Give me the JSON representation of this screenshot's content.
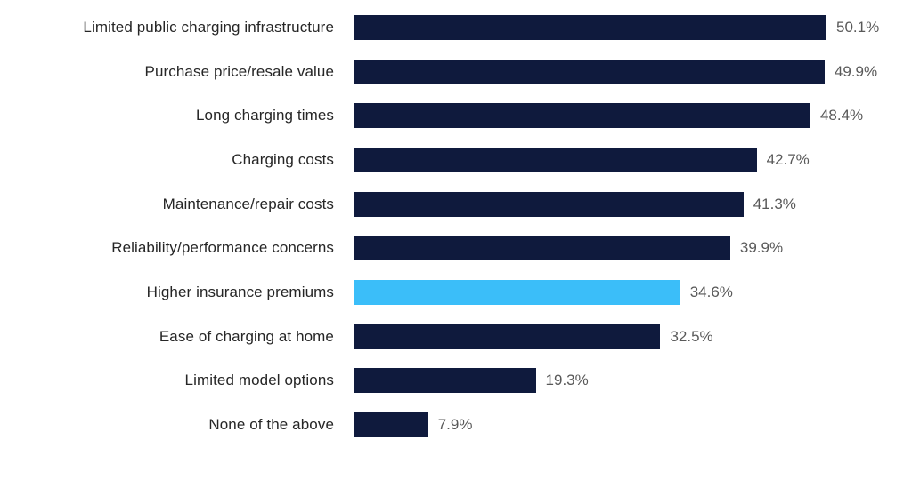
{
  "chart_data": {
    "type": "bar",
    "orientation": "horizontal",
    "title": "",
    "xlabel": "",
    "ylabel": "",
    "categories": [
      "Limited public charging infrastructure",
      "Purchase price/resale value",
      "Long charging times",
      "Charging costs",
      "Maintenance/repair costs",
      "Reliability/performance concerns",
      "Higher insurance premiums",
      "Ease of charging at home",
      "Limited model options",
      "None of the above"
    ],
    "values": [
      50.1,
      49.9,
      48.4,
      42.7,
      41.3,
      39.9,
      34.6,
      32.5,
      19.3,
      7.9
    ],
    "value_labels": [
      "50.1%",
      "49.9%",
      "48.4%",
      "42.7%",
      "41.3%",
      "39.9%",
      "34.6%",
      "32.5%",
      "19.3%",
      "7.9%"
    ],
    "highlighted_index": 6,
    "highlighted_category": "Higher insurance premiums",
    "layout": {
      "gridlines": false,
      "legend": "none",
      "x_axis_tick_labels_visible": false,
      "data_labels_position": "outside-end"
    },
    "colors": {
      "bar_default": "#0f1a3d",
      "bar_highlight": "#3bbef9",
      "category_label": "#262626",
      "value_label": "#595959",
      "axis_line": "#c9c9d1",
      "background": "#ffffff"
    }
  }
}
